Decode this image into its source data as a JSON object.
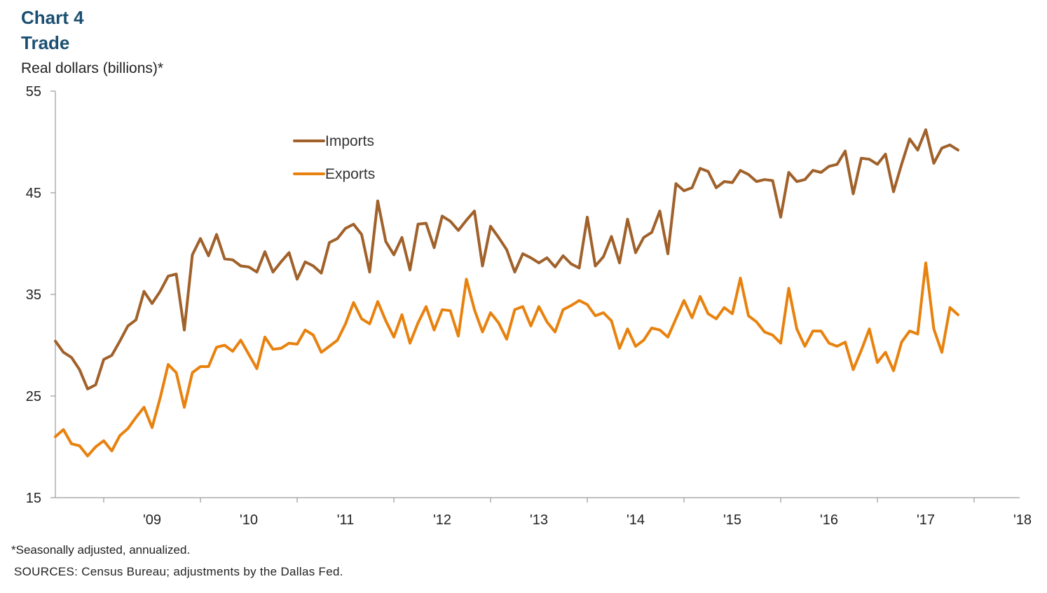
{
  "header": {
    "chart_number": "Chart 4",
    "title": "Trade",
    "units": "Real dollars (billions)*"
  },
  "footnotes": {
    "note": "*Seasonally adjusted, annualized.",
    "sources": "SOURCES: Census Bureau; adjustments by the Dallas Fed."
  },
  "colors": {
    "imports": "#a0612a",
    "exports": "#e8820f",
    "axis": "#9a9a9a",
    "title": "#1b4f72"
  },
  "chart_data": {
    "type": "line",
    "ylim": [
      15,
      55
    ],
    "yticks": [
      15,
      25,
      35,
      45,
      55
    ],
    "xlabels": [
      "'09",
      "'10",
      "'11",
      "'12",
      "'13",
      "'14",
      "'15",
      "'16",
      "'17",
      "'18"
    ],
    "x_start": "2008-07",
    "frequency": "monthly",
    "grid": false,
    "legend_position": "top-center",
    "series": [
      {
        "name": "Imports",
        "values": [
          30.4,
          29.3,
          28.8,
          27.6,
          25.7,
          26.1,
          28.6,
          29.0,
          30.4,
          31.9,
          32.5,
          35.3,
          34.1,
          35.3,
          36.8,
          37.0,
          31.5,
          38.9,
          40.5,
          38.8,
          40.9,
          38.5,
          38.4,
          37.8,
          37.7,
          37.2,
          39.2,
          37.2,
          38.2,
          39.1,
          36.5,
          38.2,
          37.8,
          37.1,
          40.1,
          40.5,
          41.5,
          41.9,
          40.9,
          37.2,
          44.2,
          40.2,
          38.9,
          40.6,
          37.4,
          41.9,
          42.0,
          39.6,
          42.7,
          42.2,
          41.3,
          42.3,
          43.2,
          37.8,
          41.7,
          40.6,
          39.4,
          37.2,
          39.0,
          38.6,
          38.1,
          38.6,
          37.7,
          38.8,
          38.0,
          37.6,
          42.6,
          37.8,
          38.7,
          40.7,
          38.1,
          42.4,
          39.1,
          40.6,
          41.1,
          43.2,
          39.0,
          45.9,
          45.2,
          45.5,
          47.4,
          47.1,
          45.5,
          46.1,
          46.0,
          47.2,
          46.8,
          46.1,
          46.3,
          46.2,
          42.6,
          47.0,
          46.1,
          46.3,
          47.2,
          47.0,
          47.6,
          47.8,
          49.1,
          44.9,
          48.4,
          48.3,
          47.8,
          48.8,
          45.1,
          47.8,
          50.3,
          49.2,
          51.2,
          47.9,
          49.4,
          49.7,
          49.2
        ]
      },
      {
        "name": "Exports",
        "values": [
          21.0,
          21.7,
          20.3,
          20.1,
          19.1,
          20.0,
          20.6,
          19.6,
          21.1,
          21.8,
          22.9,
          23.9,
          21.9,
          24.8,
          28.1,
          27.3,
          23.9,
          27.3,
          27.9,
          27.9,
          29.8,
          30.0,
          29.4,
          30.5,
          29.1,
          27.7,
          30.8,
          29.6,
          29.7,
          30.2,
          30.1,
          31.5,
          31.0,
          29.3,
          29.9,
          30.5,
          32.1,
          34.2,
          32.6,
          32.1,
          34.3,
          32.4,
          30.8,
          33.0,
          30.2,
          32.2,
          33.8,
          31.5,
          33.5,
          33.4,
          30.9,
          36.5,
          33.5,
          31.3,
          33.2,
          32.2,
          30.6,
          33.5,
          33.8,
          31.9,
          33.8,
          32.3,
          31.3,
          33.5,
          33.9,
          34.4,
          34.0,
          32.9,
          33.2,
          32.4,
          29.7,
          31.6,
          29.9,
          30.5,
          31.7,
          31.5,
          30.8,
          32.6,
          34.4,
          32.7,
          34.8,
          33.1,
          32.6,
          33.7,
          33.1,
          36.6,
          32.9,
          32.3,
          31.3,
          31.0,
          30.2,
          35.6,
          31.6,
          29.9,
          31.4,
          31.4,
          30.2,
          29.9,
          30.3,
          27.6,
          29.5,
          31.6,
          28.3,
          29.3,
          27.5,
          30.3,
          31.4,
          31.1,
          38.1,
          31.6,
          29.3,
          33.7,
          33.0
        ]
      }
    ]
  }
}
